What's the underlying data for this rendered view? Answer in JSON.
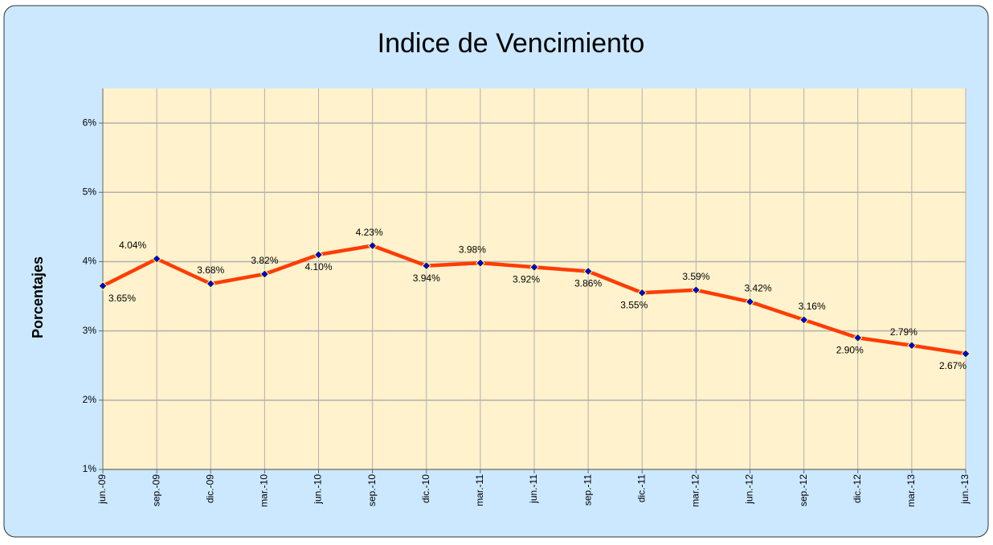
{
  "chart_data": {
    "type": "line",
    "title": "Indice de Vencimiento",
    "y_label": "Porcentajes",
    "categories": [
      "jun.-09",
      "sep.-09",
      "dic.-09",
      "mar.-10",
      "jun.-10",
      "sep.-10",
      "dic.-10",
      "mar.-11",
      "jun.-11",
      "sep.-11",
      "dic.-11",
      "mar.-12",
      "jun.-12",
      "sep.-12",
      "dic.-12",
      "mar.-13",
      "jun.-13"
    ],
    "series": [
      {
        "name": "Indice de Vencimiento",
        "color": "#ff3c00",
        "marker_color": "#0000cc",
        "values": [
          3.65,
          4.04,
          3.68,
          3.82,
          4.1,
          4.23,
          3.94,
          3.98,
          3.92,
          3.86,
          3.55,
          3.59,
          3.42,
          3.16,
          2.9,
          2.79,
          2.67
        ],
        "value_labels": [
          "3.65%",
          "4.04%",
          "3.68%",
          "3.82%",
          "4.10%",
          "4.23%",
          "3.94%",
          "3.98%",
          "3.92%",
          "3.86%",
          "3.55%",
          "3.59%",
          "3.42%",
          "3.16%",
          "2.90%",
          "2.79%",
          "2.67%"
        ]
      }
    ],
    "ylim": [
      1,
      6.5
    ],
    "yticks": [
      {
        "value": 1,
        "label": "1%"
      },
      {
        "value": 2,
        "label": "2%"
      },
      {
        "value": 3,
        "label": "3%"
      },
      {
        "value": 4,
        "label": "4%"
      },
      {
        "value": 5,
        "label": "5%"
      },
      {
        "value": 6,
        "label": "6%"
      }
    ],
    "grid": true
  }
}
